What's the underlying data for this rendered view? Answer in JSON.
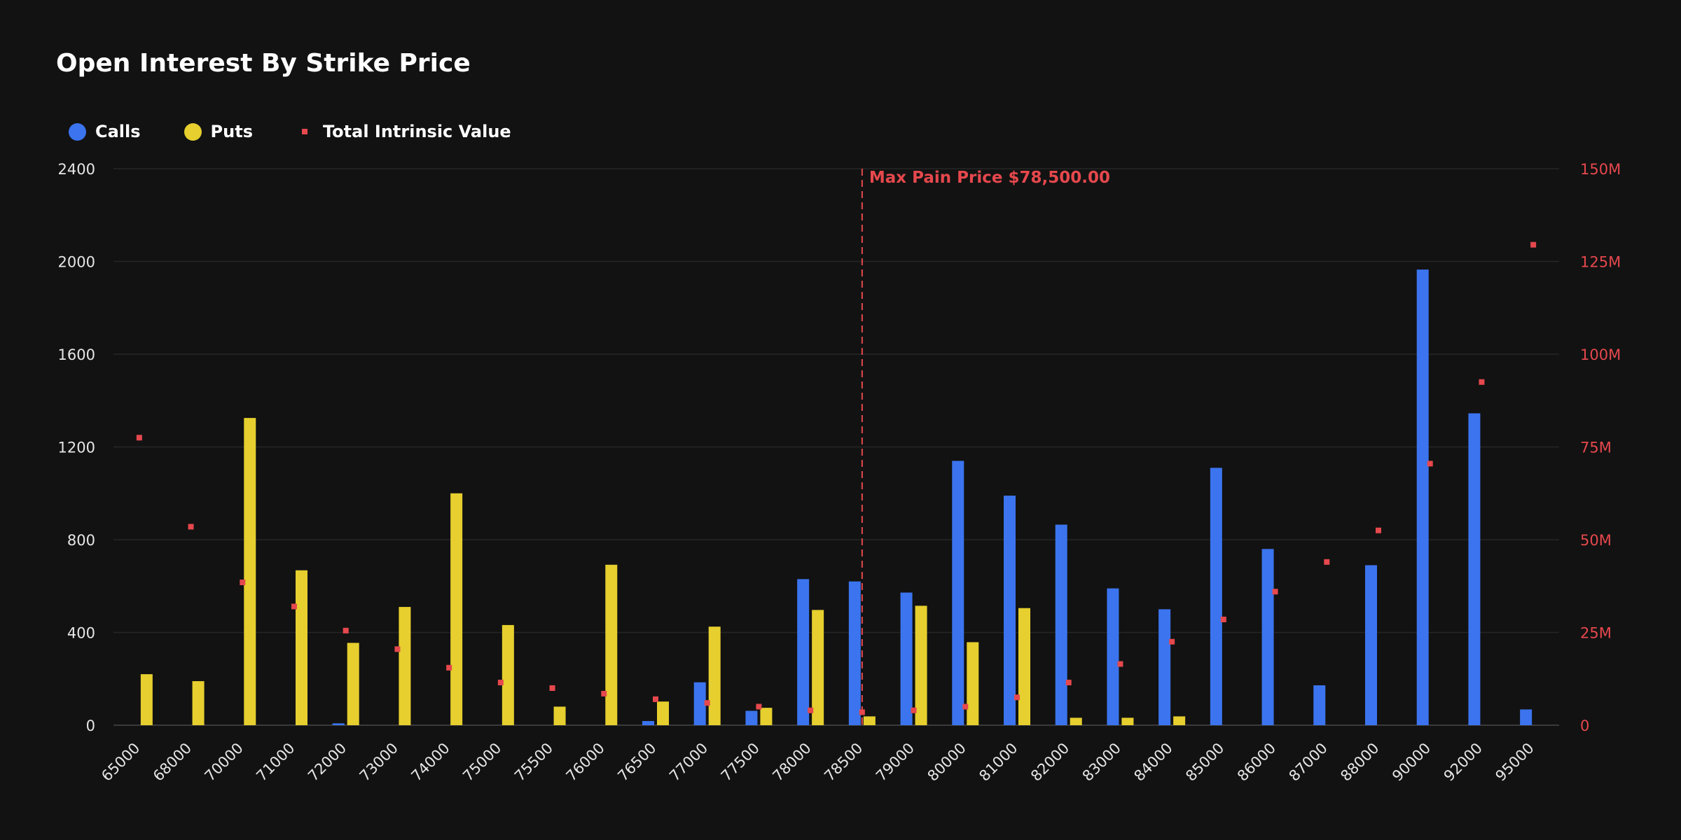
{
  "colors": {
    "background": "#121212",
    "calls": "#3b74ee",
    "puts": "#e6cf2e",
    "intrinsic": "#e5484d",
    "max_pain": "#e5484d",
    "grid": "#262626",
    "axis_text": "#e6e6e6",
    "right_axis_text": "#e5484d"
  },
  "legend_icons": {
    "calls": "circle",
    "puts": "circle",
    "intrinsic": "square"
  },
  "chart_data": {
    "type": "bar",
    "title": "Open Interest By Strike Price",
    "legend_placement": "top-left",
    "grid": true,
    "categories": [
      "65000",
      "68000",
      "70000",
      "71000",
      "72000",
      "73000",
      "74000",
      "75000",
      "75500",
      "76000",
      "76500",
      "77000",
      "77500",
      "78000",
      "78500",
      "79000",
      "80000",
      "81000",
      "82000",
      "83000",
      "84000",
      "85000",
      "86000",
      "87000",
      "88000",
      "90000",
      "92000",
      "95000"
    ],
    "series": [
      {
        "name": "Calls",
        "axis": "left",
        "values": [
          0,
          0,
          0,
          0,
          8,
          0,
          0,
          0,
          0,
          0,
          18,
          185,
          62,
          630,
          620,
          572,
          1140,
          990,
          865,
          590,
          500,
          1110,
          760,
          172,
          690,
          1965,
          1345,
          68
        ]
      },
      {
        "name": "Puts",
        "axis": "left",
        "values": [
          220,
          190,
          1325,
          668,
          355,
          510,
          1000,
          432,
          80,
          692,
          102,
          425,
          75,
          497,
          38,
          515,
          358,
          505,
          32,
          32,
          38,
          0,
          0,
          0,
          0,
          0,
          0,
          0
        ]
      },
      {
        "name": "Total Intrinsic Value",
        "axis": "right",
        "type": "scatter",
        "values": [
          77.5,
          53.5,
          38.5,
          32,
          25.5,
          20.5,
          15.5,
          11.5,
          10,
          8.5,
          7,
          6,
          5,
          4,
          3.5,
          4,
          5,
          7.5,
          11.5,
          16.5,
          22.5,
          28.5,
          36,
          44,
          52.5,
          70.5,
          92.5,
          129.5
        ]
      }
    ],
    "y_left": {
      "min": 0,
      "max": 2400,
      "ticks": [
        "0",
        "400",
        "800",
        "1200",
        "1600",
        "2000",
        "2400"
      ]
    },
    "y_right": {
      "min": 0,
      "max": 150,
      "unit": "M",
      "ticks": [
        "0",
        "25M",
        "50M",
        "75M",
        "100M",
        "125M",
        "150M"
      ]
    },
    "annotations": [
      {
        "type": "vline",
        "x": "78500",
        "label": "Max Pain Price $78,500.00"
      }
    ]
  }
}
